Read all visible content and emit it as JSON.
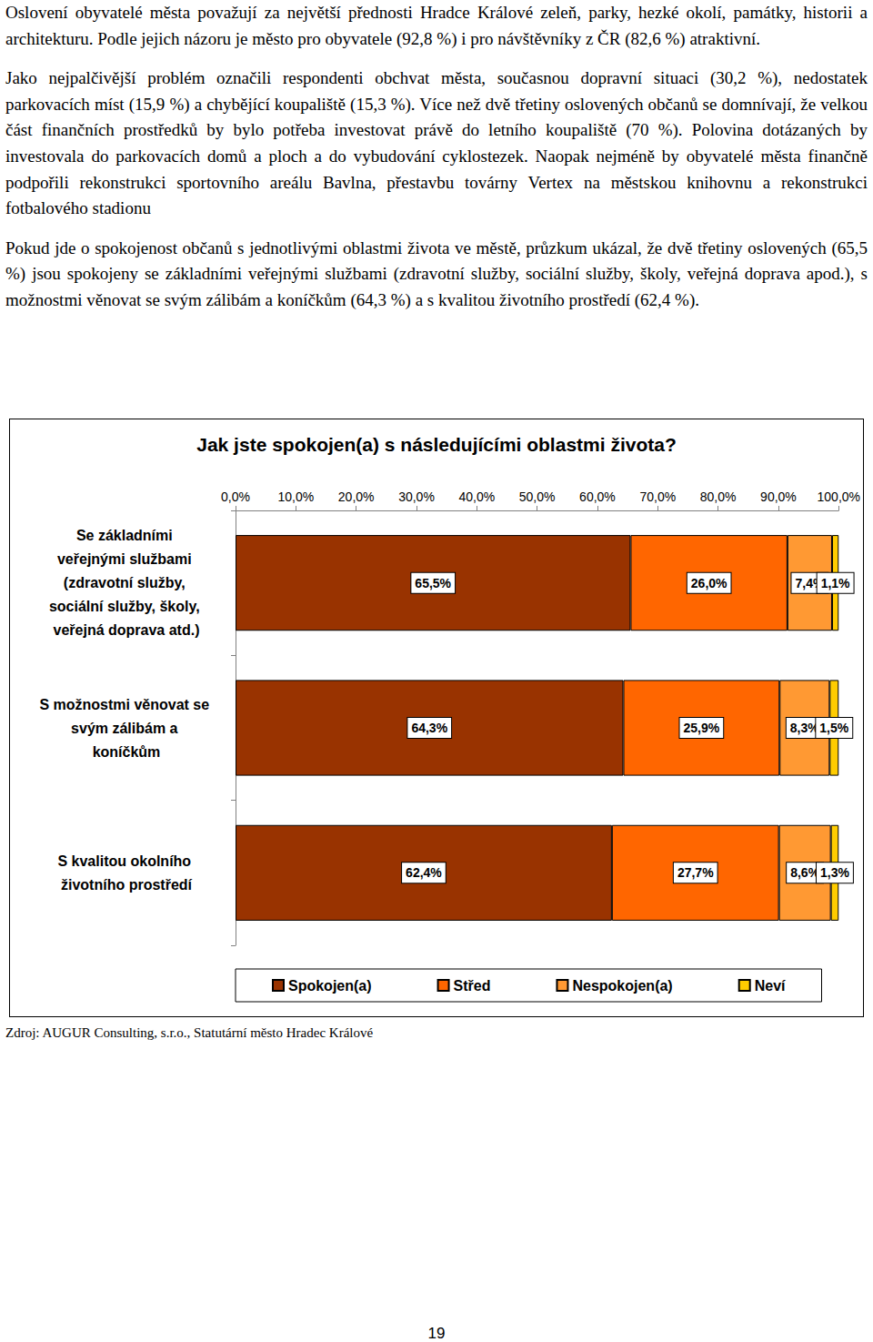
{
  "paragraphs": [
    "Oslovení obyvatelé města považují za největší přednosti Hradce Králové zeleň, parky, hezké okolí, památky, historii a architekturu. Podle jejich názoru je město pro obyvatele (92,8 %) i pro návštěvníky z ČR (82,6 %) atraktivní.",
    "Jako nejpalčivější problém označili respondenti obchvat města, současnou dopravní situaci (30,2 %), nedostatek parkovacích míst (15,9 %) a chybějící koupaliště (15,3 %). Více než dvě třetiny oslovených občanů se domnívají, že velkou část finančních prostředků by bylo potřeba investovat právě do letního koupaliště (70 %). Polovina dotázaných by investovala do parkovacích domů a ploch a do vybudování cyklostezek. Naopak nejméně by obyvatelé města finančně podpořili rekonstrukci sportovního areálu Bavlna, přestavbu továrny Vertex na městskou knihovnu a rekonstrukci fotbalového stadionu",
    "Pokud jde o spokojenost občanů s jednotlivými oblastmi života ve městě, průzkum ukázal, že dvě třetiny oslovených (65,5 %) jsou spokojeny se základními veřejnými službami (zdravotní služby, sociální služby, školy, veřejná doprava apod.), s možnostmi věnovat se svým zálibám a koníčkům (64,3 %) a s kvalitou životního prostředí (62,4 %)."
  ],
  "chart_data": {
    "type": "bar",
    "orientation": "horizontal",
    "stacked": true,
    "title": "Jak jste spokojen(a) s následujícími oblastmi života?",
    "categories": [
      "Se základními veřejnými službami (zdravotní služby, sociální služby, školy, veřejná doprava atd.)",
      "S možnostmi věnovat se svým zálibám a koníčkům",
      "S kvalitou okolního životního prostředí"
    ],
    "series": [
      {
        "name": "Spokojen(a)",
        "color": "#993300",
        "values": [
          65.5,
          64.3,
          62.4
        ],
        "value_labels": [
          "65,5%",
          "64,3%",
          "62,4%"
        ]
      },
      {
        "name": "Střed",
        "color": "#ff6600",
        "values": [
          26.0,
          25.9,
          27.7
        ],
        "value_labels": [
          "26,0%",
          "25,9%",
          "27,7%"
        ]
      },
      {
        "name": "Nespokojen(a)",
        "color": "#ff9933",
        "values": [
          7.4,
          8.3,
          8.6
        ],
        "value_labels": [
          "7,4%",
          "8,3%",
          "8,6%"
        ]
      },
      {
        "name": "Neví",
        "color": "#ffcc00",
        "values": [
          1.1,
          1.5,
          1.3
        ],
        "value_labels": [
          "1,1%",
          "1,5%",
          "1,3%"
        ]
      }
    ],
    "xlim": [
      0,
      100
    ],
    "xticks": [
      {
        "value": 0,
        "label": "0,0%"
      },
      {
        "value": 10,
        "label": "10,0%"
      },
      {
        "value": 20,
        "label": "20,0%"
      },
      {
        "value": 30,
        "label": "30,0%"
      },
      {
        "value": 40,
        "label": "40,0%"
      },
      {
        "value": 50,
        "label": "50,0%"
      },
      {
        "value": 60,
        "label": "60,0%"
      },
      {
        "value": 70,
        "label": "70,0%"
      },
      {
        "value": 80,
        "label": "80,0%"
      },
      {
        "value": 90,
        "label": "90,0%"
      },
      {
        "value": 100,
        "label": "100,0%"
      }
    ],
    "grid": false,
    "data_labels": true,
    "legend": "bottom"
  },
  "source": "Zdroj: AUGUR Consulting, s.r.o., Statutární město Hradec Králové",
  "page_number": 19
}
